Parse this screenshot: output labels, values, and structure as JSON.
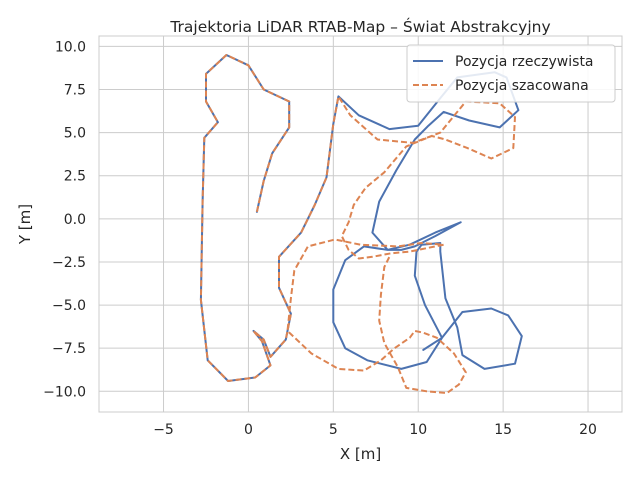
{
  "chart_data": {
    "type": "line",
    "title": "Trajektoria LiDAR RTAB-Map – Świat Abstrakcyjny",
    "xlabel": "X [m]",
    "ylabel": "Y [m]",
    "xlim": [
      -8.8,
      22.0
    ],
    "ylim": [
      -11.2,
      10.6
    ],
    "xticks": [
      -5,
      0,
      5,
      10,
      15,
      20
    ],
    "yticks": [
      -10.0,
      -7.5,
      -5.0,
      -2.5,
      0.0,
      2.5,
      5.0,
      7.5,
      10.0
    ],
    "xtick_labels": [
      "−5",
      "0",
      "5",
      "10",
      "15",
      "20"
    ],
    "ytick_labels": [
      "−10.0",
      "−7.5",
      "−5.0",
      "−2.5",
      "0.0",
      "2.5",
      "5.0",
      "7.5",
      "10.0"
    ],
    "grid": true,
    "legend_position": "top-right",
    "series": [
      {
        "name": "Pozycja rzeczywista",
        "color": "#4c72b0",
        "style": "solid",
        "points": [
          [
            0.5,
            0.4
          ],
          [
            0.9,
            2.2
          ],
          [
            1.4,
            3.8
          ],
          [
            2.4,
            5.3
          ],
          [
            2.4,
            6.8
          ],
          [
            0.9,
            7.5
          ],
          [
            0.0,
            8.9
          ],
          [
            -1.3,
            9.5
          ],
          [
            -2.5,
            8.4
          ],
          [
            -2.5,
            6.8
          ],
          [
            -1.8,
            5.6
          ],
          [
            -2.6,
            4.7
          ],
          [
            -2.7,
            1.0
          ],
          [
            -2.8,
            -4.7
          ],
          [
            -2.4,
            -8.2
          ],
          [
            -1.2,
            -9.4
          ],
          [
            0.4,
            -9.2
          ],
          [
            1.3,
            -8.5
          ],
          [
            0.8,
            -7.1
          ],
          [
            0.3,
            -6.5
          ],
          [
            0.9,
            -7.0
          ],
          [
            1.3,
            -8.0
          ],
          [
            2.2,
            -7.0
          ],
          [
            2.5,
            -5.5
          ],
          [
            1.8,
            -4.0
          ],
          [
            1.8,
            -2.2
          ],
          [
            3.1,
            -0.8
          ],
          [
            3.9,
            0.8
          ],
          [
            4.6,
            2.4
          ],
          [
            5.0,
            5.5
          ],
          [
            5.3,
            7.1
          ],
          [
            6.5,
            6.0
          ],
          [
            8.3,
            5.2
          ],
          [
            10.0,
            5.4
          ],
          [
            11.3,
            7.0
          ],
          [
            12.3,
            8.2
          ],
          [
            14.5,
            8.5
          ],
          [
            15.2,
            8.2
          ],
          [
            15.9,
            6.3
          ],
          [
            14.8,
            5.3
          ],
          [
            13.0,
            5.7
          ],
          [
            11.5,
            6.2
          ],
          [
            10.6,
            5.4
          ],
          [
            9.8,
            4.6
          ],
          [
            8.7,
            2.8
          ],
          [
            7.7,
            1.0
          ],
          [
            7.3,
            -0.8
          ],
          [
            8.2,
            -1.8
          ],
          [
            9.5,
            -1.5
          ],
          [
            11.0,
            -0.8
          ],
          [
            12.5,
            -0.2
          ],
          [
            11.0,
            -1.0
          ],
          [
            9.8,
            -1.6
          ],
          [
            9.0,
            -1.8
          ],
          [
            8.2,
            -1.8
          ],
          [
            6.8,
            -1.6
          ],
          [
            5.7,
            -2.4
          ],
          [
            5.0,
            -4.1
          ],
          [
            5.0,
            -6.0
          ],
          [
            5.7,
            -7.5
          ],
          [
            7.0,
            -8.2
          ],
          [
            9.0,
            -8.7
          ],
          [
            10.5,
            -8.3
          ],
          [
            11.4,
            -6.9
          ],
          [
            10.4,
            -5.0
          ],
          [
            9.8,
            -3.3
          ],
          [
            9.9,
            -1.9
          ],
          [
            10.2,
            -1.5
          ],
          [
            11.3,
            -1.4
          ],
          [
            11.3,
            -1.9
          ],
          [
            11.6,
            -4.6
          ],
          [
            12.3,
            -6.3
          ],
          [
            12.6,
            -7.9
          ],
          [
            13.9,
            -8.7
          ],
          [
            15.7,
            -8.4
          ],
          [
            16.1,
            -6.8
          ],
          [
            15.3,
            -5.6
          ],
          [
            14.3,
            -5.2
          ],
          [
            12.6,
            -5.4
          ],
          [
            11.4,
            -6.9
          ],
          [
            10.3,
            -7.6
          ]
        ]
      },
      {
        "name": "Pozycja szacowana",
        "color": "#dd8452",
        "style": "dashed",
        "points": [
          [
            0.5,
            0.4
          ],
          [
            0.9,
            2.2
          ],
          [
            1.4,
            3.8
          ],
          [
            2.4,
            5.3
          ],
          [
            2.4,
            6.8
          ],
          [
            0.9,
            7.5
          ],
          [
            0.0,
            8.9
          ],
          [
            -1.3,
            9.5
          ],
          [
            -2.5,
            8.4
          ],
          [
            -2.5,
            6.8
          ],
          [
            -1.8,
            5.6
          ],
          [
            -2.6,
            4.7
          ],
          [
            -2.7,
            1.0
          ],
          [
            -2.8,
            -4.7
          ],
          [
            -2.4,
            -8.2
          ],
          [
            -1.2,
            -9.4
          ],
          [
            0.4,
            -9.2
          ],
          [
            1.3,
            -8.5
          ],
          [
            0.8,
            -7.1
          ],
          [
            0.3,
            -6.5
          ],
          [
            0.9,
            -7.0
          ],
          [
            1.3,
            -8.0
          ],
          [
            2.2,
            -7.0
          ],
          [
            2.5,
            -5.5
          ],
          [
            1.8,
            -4.0
          ],
          [
            1.8,
            -2.2
          ],
          [
            3.1,
            -0.8
          ],
          [
            3.9,
            0.8
          ],
          [
            4.6,
            2.4
          ],
          [
            5.0,
            5.5
          ],
          [
            5.3,
            7.1
          ],
          [
            6.0,
            6.0
          ],
          [
            7.6,
            4.6
          ],
          [
            9.7,
            4.4
          ],
          [
            11.3,
            5.0
          ],
          [
            12.8,
            6.8
          ],
          [
            14.8,
            6.7
          ],
          [
            15.7,
            5.9
          ],
          [
            15.6,
            4.1
          ],
          [
            14.3,
            3.5
          ],
          [
            12.9,
            4.1
          ],
          [
            11.6,
            4.6
          ],
          [
            10.8,
            4.8
          ],
          [
            9.3,
            4.2
          ],
          [
            8.0,
            2.7
          ],
          [
            6.9,
            1.8
          ],
          [
            6.2,
            0.8
          ],
          [
            5.9,
            -0.2
          ],
          [
            5.5,
            -1.0
          ],
          [
            5.9,
            -1.8
          ],
          [
            6.5,
            -2.3
          ],
          [
            7.3,
            -2.2
          ],
          [
            8.4,
            -2.0
          ],
          [
            9.5,
            -1.9
          ],
          [
            11.5,
            -1.5
          ],
          [
            10.2,
            -1.4
          ],
          [
            8.8,
            -1.6
          ],
          [
            6.6,
            -1.5
          ],
          [
            5.1,
            -1.2
          ],
          [
            3.5,
            -1.6
          ],
          [
            2.7,
            -3.0
          ],
          [
            2.5,
            -4.6
          ],
          [
            2.3,
            -6.5
          ],
          [
            3.7,
            -7.8
          ],
          [
            5.3,
            -8.7
          ],
          [
            6.8,
            -8.8
          ],
          [
            7.8,
            -8.2
          ],
          [
            8.6,
            -7.5
          ],
          [
            9.5,
            -6.9
          ],
          [
            9.8,
            -6.5
          ],
          [
            10.3,
            -6.6
          ],
          [
            11.1,
            -6.9
          ],
          [
            12.1,
            -7.8
          ],
          [
            12.8,
            -8.9
          ],
          [
            12.4,
            -9.6
          ],
          [
            11.7,
            -10.1
          ],
          [
            10.5,
            -10.0
          ],
          [
            9.3,
            -9.8
          ],
          [
            8.8,
            -8.6
          ],
          [
            8.0,
            -7.2
          ],
          [
            7.7,
            -5.9
          ],
          [
            7.8,
            -4.4
          ],
          [
            7.9,
            -3.6
          ],
          [
            8.0,
            -2.8
          ],
          [
            8.3,
            -2.2
          ]
        ]
      }
    ]
  }
}
